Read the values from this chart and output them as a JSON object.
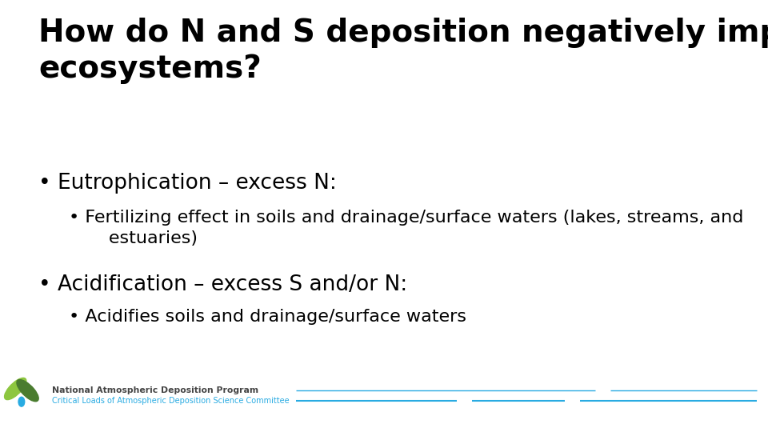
{
  "title_line1": "How do N and S deposition negatively impact",
  "title_line2": "ecosystems?",
  "title_fontsize": 28,
  "title_color": "#000000",
  "bullet1": "Eutrophication – excess N:",
  "bullet1_fontsize": 19,
  "sub_bullet1a": "Fertilizing effect in soils and drainage/surface waters (lakes, streams, and",
  "sub_bullet1b": "      estuaries)",
  "sub_bullet_fontsize": 16,
  "bullet2": "Acidification – excess S and/or N:",
  "bullet2_fontsize": 19,
  "sub_bullet2": "Acidifies soils and drainage/surface waters",
  "bg_color": "#ffffff",
  "text_color": "#000000",
  "nadp_text": "National Atmospheric Deposition Program",
  "nadp_color": "#444444",
  "clads_text": "Critical Loads of Atmospheric Deposition Science Committee",
  "clads_color": "#29abe2",
  "line_color": "#29abe2",
  "logo_green_light": "#8dc63f",
  "logo_green_dark": "#4a7c2f",
  "logo_blue": "#29abe2"
}
